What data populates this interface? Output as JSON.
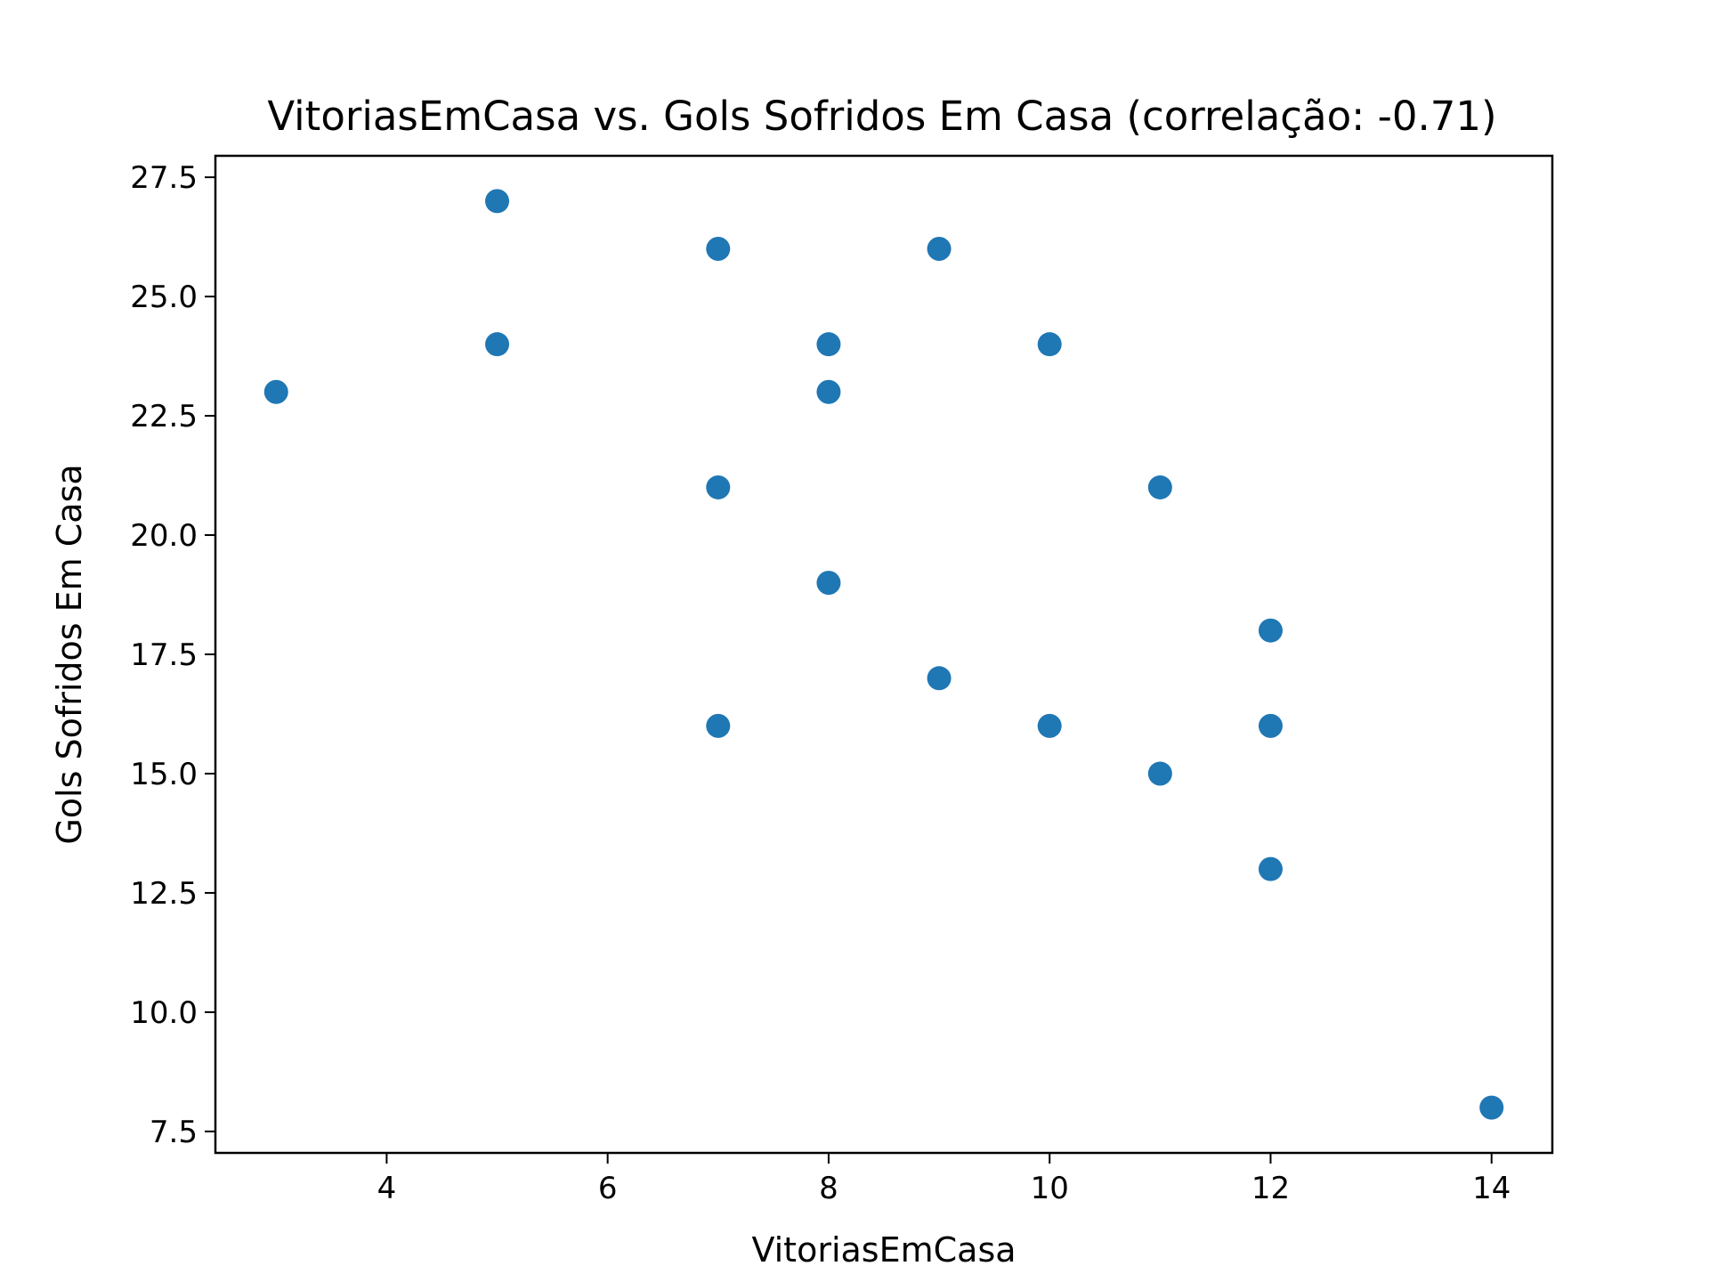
{
  "chart_data": {
    "type": "scatter",
    "title": "VitoriasEmCasa vs. Gols Sofridos Em Casa (correlação: -0.71)",
    "xlabel": "VitoriasEmCasa",
    "ylabel": "Gols Sofridos Em Casa",
    "xlim": [
      2.45,
      14.55
    ],
    "ylim": [
      7.05,
      27.95
    ],
    "xticks": [
      4,
      6,
      8,
      10,
      12,
      14
    ],
    "xtick_labels": [
      "4",
      "6",
      "8",
      "10",
      "12",
      "14"
    ],
    "yticks": [
      7.5,
      10.0,
      12.5,
      15.0,
      17.5,
      20.0,
      22.5,
      25.0,
      27.5
    ],
    "ytick_labels": [
      "7.5",
      "10.0",
      "12.5",
      "15.0",
      "17.5",
      "20.0",
      "22.5",
      "25.0",
      "27.5"
    ],
    "grid": false,
    "marker_color": "#1f77b4",
    "points": [
      {
        "x": 3,
        "y": 23
      },
      {
        "x": 5,
        "y": 27
      },
      {
        "x": 5,
        "y": 24
      },
      {
        "x": 7,
        "y": 26
      },
      {
        "x": 7,
        "y": 21
      },
      {
        "x": 7,
        "y": 16
      },
      {
        "x": 8,
        "y": 24
      },
      {
        "x": 8,
        "y": 23
      },
      {
        "x": 8,
        "y": 19
      },
      {
        "x": 9,
        "y": 26
      },
      {
        "x": 9,
        "y": 17
      },
      {
        "x": 10,
        "y": 24
      },
      {
        "x": 10,
        "y": 16
      },
      {
        "x": 11,
        "y": 21
      },
      {
        "x": 11,
        "y": 15
      },
      {
        "x": 12,
        "y": 18
      },
      {
        "x": 12,
        "y": 16
      },
      {
        "x": 12,
        "y": 13
      },
      {
        "x": 14,
        "y": 8
      }
    ]
  }
}
